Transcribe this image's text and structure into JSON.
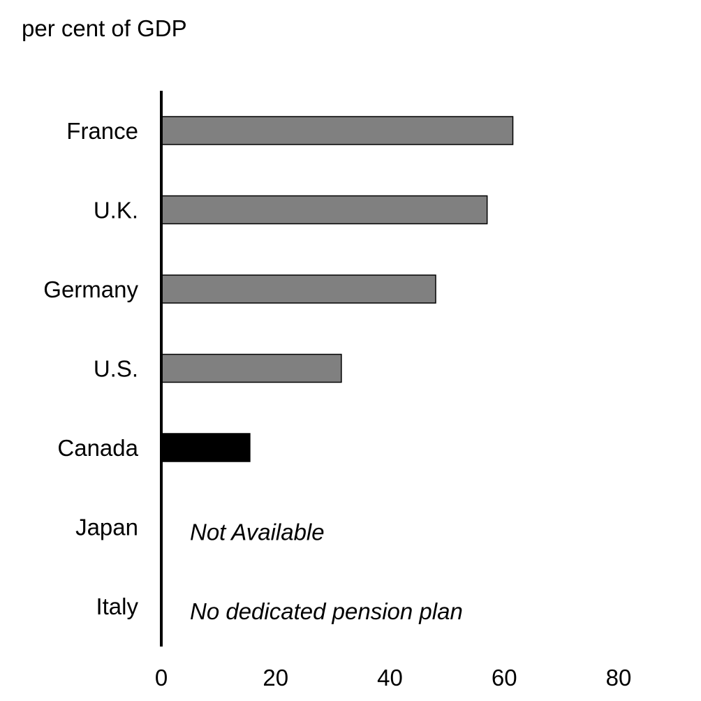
{
  "chart_data": {
    "type": "bar",
    "orientation": "horizontal",
    "title": "",
    "ylabel": "per cent of GDP",
    "xlabel": "",
    "categories": [
      "France",
      "U.K.",
      "Germany",
      "U.S.",
      "Canada",
      "Japan",
      "Italy"
    ],
    "values": [
      61.5,
      57,
      48,
      31.5,
      15.5,
      null,
      null
    ],
    "annotations": [
      {
        "category": "Japan",
        "text": "Not Available"
      },
      {
        "category": "Italy",
        "text": "No dedicated pension plan"
      }
    ],
    "xlim": [
      0,
      80
    ],
    "xticks": [
      "0",
      "20",
      "40",
      "60",
      "80"
    ],
    "grid": false,
    "legend": "none",
    "colors": {
      "default_bar": "#808080",
      "highlight_bar": "#000000",
      "highlight_category": "Canada",
      "bar_outline": "#000000"
    }
  }
}
